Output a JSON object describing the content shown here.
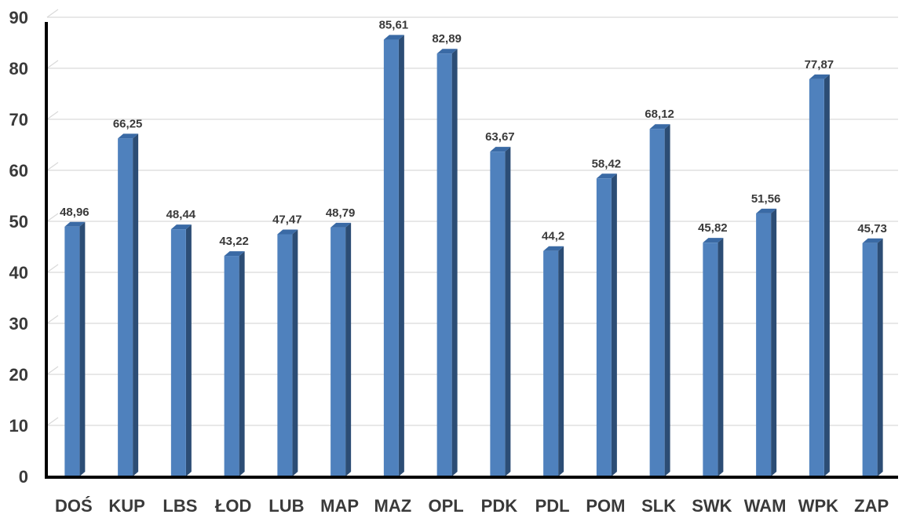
{
  "colors": {
    "bar_front": "#4f81bd",
    "bar_side": "#2c4d75",
    "bar_top": "#3a6aa5",
    "grid": "#d9d9d9",
    "axis": "#000000",
    "text": "#3a3a3a"
  },
  "chart_data": {
    "type": "bar",
    "title": "",
    "xlabel": "",
    "ylabel": "",
    "ylim": [
      0,
      90
    ],
    "yticks": [
      0,
      10,
      20,
      30,
      40,
      50,
      60,
      70,
      80,
      90
    ],
    "grid": true,
    "legend": "none",
    "categories": [
      "DOŚ",
      "KUP",
      "LBS",
      "ŁOD",
      "LUB",
      "MAP",
      "MAZ",
      "OPL",
      "PDK",
      "PDL",
      "POM",
      "SLK",
      "SWK",
      "WAM",
      "WPK",
      "ZAP"
    ],
    "values": [
      48.96,
      66.25,
      48.44,
      43.22,
      47.47,
      48.79,
      85.61,
      82.89,
      63.67,
      44.2,
      58.42,
      68.12,
      45.82,
      51.56,
      77.87,
      45.73
    ],
    "data_labels": [
      "48,96",
      "66,25",
      "48,44",
      "43,22",
      "47,47",
      "48,79",
      "85,61",
      "82,89",
      "63,67",
      "44,2",
      "58,42",
      "68,12",
      "45,82",
      "51,56",
      "77,87",
      "45,73"
    ]
  }
}
